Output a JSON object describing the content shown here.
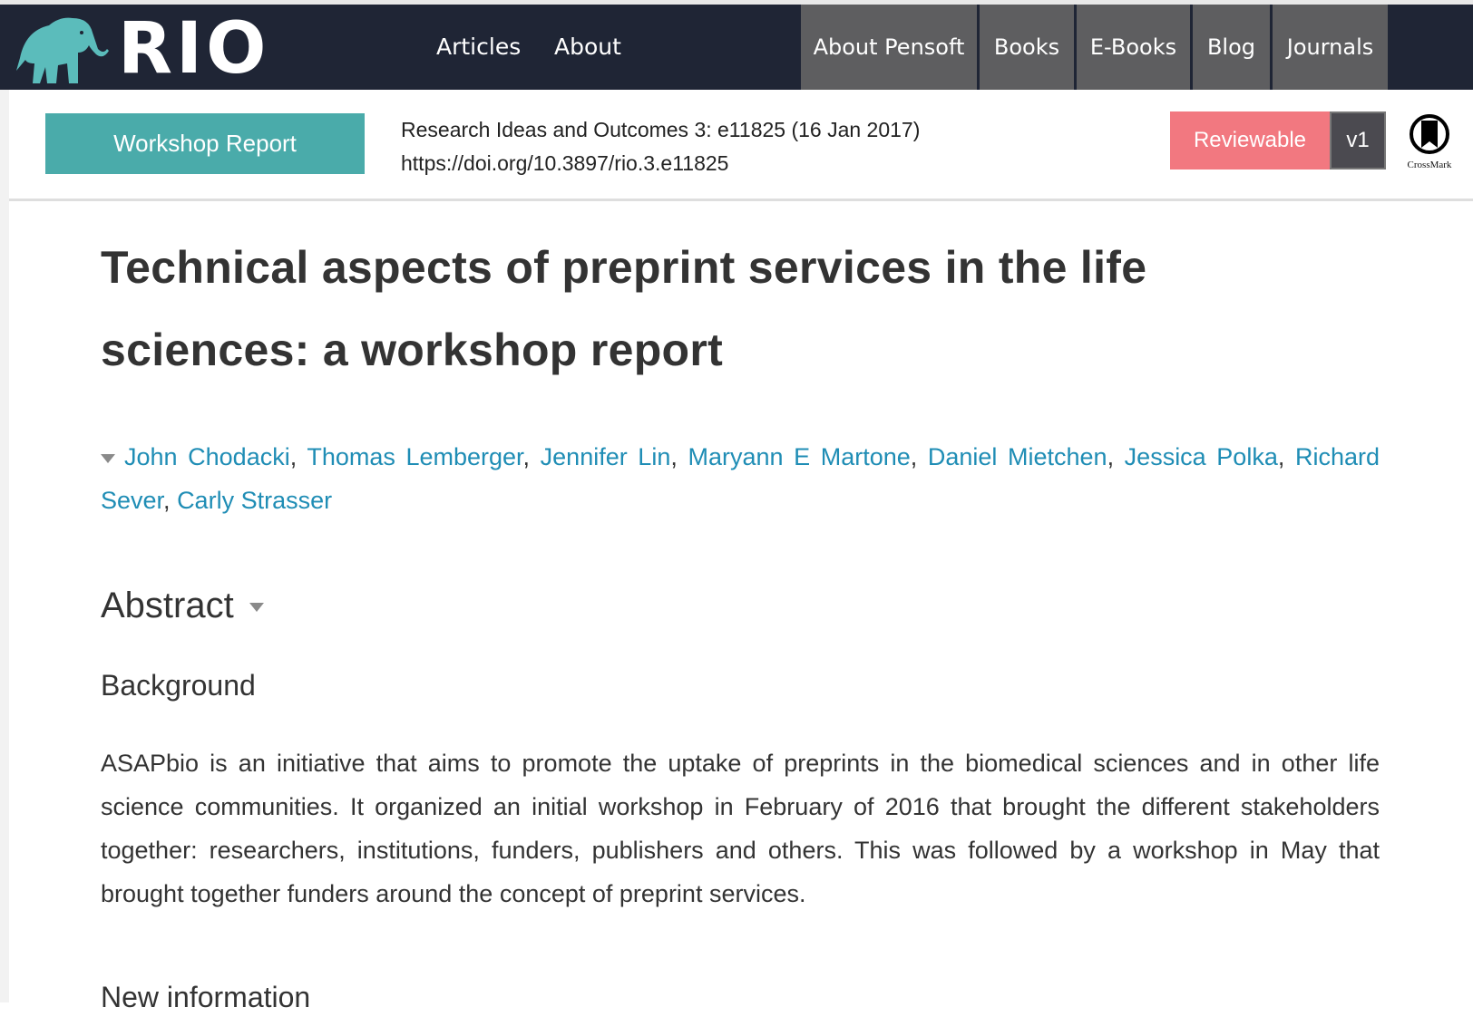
{
  "nav": {
    "logo_text": "RIO",
    "links": [
      "Articles",
      "About"
    ],
    "pensoft_links": [
      "About Pensoft",
      "Books",
      "E-Books",
      "Blog",
      "Journals"
    ]
  },
  "subheader": {
    "type_label": "Workshop Report",
    "citation": "Research Ideas and Outcomes 3: e11825 (16 Jan 2017)",
    "doi": "https://doi.org/10.3897/rio.3.e11825",
    "status_label": "Reviewable",
    "version_label": "v1",
    "crossmark_label": "CrossMark"
  },
  "colors": {
    "nav_bg": "#1f2535",
    "teal": "#4aabaa",
    "reviewable": "#f27880",
    "link": "#1f8db5"
  },
  "article": {
    "title": "Technical aspects of preprint services in the life sciences: a workshop report",
    "authors": [
      "John Chodacki",
      "Thomas Lemberger",
      "Jennifer Lin",
      "Maryann E Martone",
      "Daniel Mietchen",
      "Jessica Polka",
      "Richard Sever",
      "Carly Strasser"
    ],
    "abstract_heading": "Abstract",
    "background_heading": "Background",
    "background_text": "ASAPbio is an initiative that aims to promote the uptake of preprints in the biomedical sciences and in other life science communities. It organized an initial workshop in February of 2016 that brought the different stakeholders together: researchers, institutions, funders, publishers and others. This was followed by a workshop in May that brought together funders around the concept of preprint services.",
    "next_heading": "New information"
  }
}
